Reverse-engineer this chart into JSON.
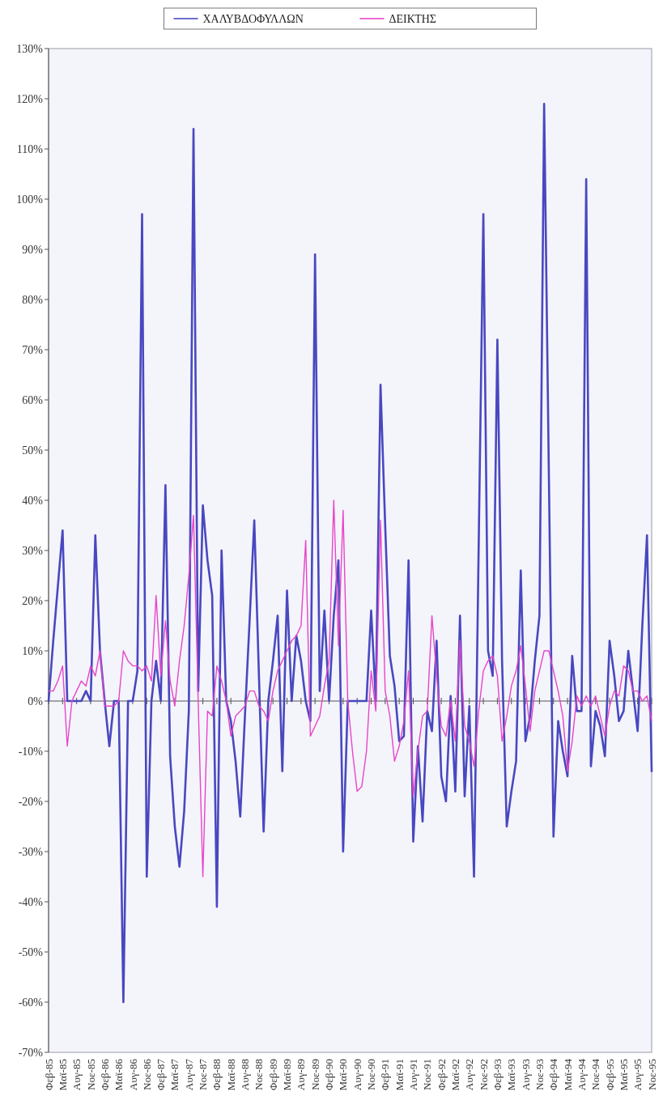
{
  "chart_data": {
    "type": "line",
    "categories": [
      "Φεβ-85",
      null,
      null,
      "Μαϊ-85",
      null,
      null,
      "Αυγ-85",
      null,
      null,
      "Νοε-85",
      null,
      null,
      "Φεβ-86",
      null,
      null,
      "Μαϊ-86",
      null,
      null,
      "Αυγ-86",
      null,
      null,
      "Νοε-86",
      null,
      null,
      "Φεβ-87",
      null,
      null,
      "Μαϊ-87",
      null,
      null,
      "Αυγ-87",
      null,
      null,
      "Νοε-87",
      null,
      null,
      "Φεβ-88",
      null,
      null,
      "Μαϊ-88",
      null,
      null,
      "Αυγ-88",
      null,
      null,
      "Νοε-88",
      null,
      null,
      "Φεβ-89",
      null,
      null,
      "Μαϊ-89",
      null,
      null,
      "Αυγ-89",
      null,
      null,
      "Νοε-89",
      null,
      null,
      "Φεβ-90",
      null,
      null,
      "Μαϊ-90",
      null,
      null,
      "Αυγ-90",
      null,
      null,
      "Νοε-90",
      null,
      null,
      "Φεβ-91",
      null,
      null,
      "Μαϊ-91",
      null,
      null,
      "Αυγ-91",
      null,
      null,
      "Νοε-91",
      null,
      null,
      "Φεβ-92",
      null,
      null,
      "Μαϊ-92",
      null,
      null,
      "Αυγ-92",
      null,
      null,
      "Νοε-92",
      null,
      null,
      "Φεβ-93",
      null,
      null,
      "Μαϊ-93",
      null,
      null,
      "Αυγ-93",
      null,
      null,
      "Νοε-93",
      null,
      null,
      "Φεβ-94",
      null,
      null,
      "Μαϊ-94",
      null,
      null,
      "Αυγ-94",
      null,
      null,
      "Νοε-94",
      null,
      null,
      "Φεβ-95",
      null,
      null,
      "Μαϊ-95",
      null,
      null,
      "Αυγ-95",
      null,
      null,
      "Νοε-95"
    ],
    "series": [
      {
        "name": "ΧΑΛΥΒΔΟΦΥΛΛΩΝ",
        "color": "#4848c0",
        "values": [
          0,
          12,
          23,
          34,
          0,
          0,
          0,
          0,
          2,
          0,
          33,
          10,
          0,
          -9,
          0,
          0,
          -60,
          0,
          0,
          6,
          97,
          -35,
          0,
          8,
          0,
          43,
          -11,
          -25,
          -33,
          -22,
          -2,
          114,
          2,
          39,
          28,
          21,
          -41,
          30,
          0,
          -4,
          -12,
          -23,
          -3,
          16,
          36,
          5,
          -26,
          0,
          8,
          17,
          -14,
          22,
          0,
          13,
          8,
          0,
          -4,
          89,
          2,
          18,
          0,
          17,
          28,
          -30,
          0,
          0,
          0,
          0,
          0,
          18,
          0,
          63,
          35,
          9,
          3,
          -8,
          -7,
          28,
          -28,
          -9,
          -24,
          -2,
          -6,
          12,
          -15,
          -20,
          1,
          -18,
          17,
          -19,
          -1,
          -35,
          31,
          97,
          10,
          5,
          72,
          8,
          -25,
          -18,
          -12,
          26,
          -8,
          -3,
          8,
          17,
          119,
          46,
          -27,
          -4,
          -10,
          -15,
          9,
          -2,
          -2,
          104,
          -13,
          -2,
          -5,
          -11,
          12,
          5,
          -4,
          -2,
          10,
          2,
          -6,
          15,
          33,
          -14
        ]
      },
      {
        "name": "ΔΕΙΚΤΗΣ",
        "color": "#e845c8",
        "values": [
          2,
          2,
          4,
          7,
          -9,
          0,
          2,
          4,
          3,
          7,
          5,
          10,
          -1,
          -1,
          -1,
          0,
          10,
          8,
          7,
          7,
          6,
          7,
          4,
          21,
          5,
          16,
          4,
          -1,
          8,
          15,
          25,
          37,
          0,
          -35,
          -2,
          -3,
          7,
          4,
          0,
          -7,
          -3,
          -2,
          -1,
          2,
          2,
          -1,
          -2,
          -4,
          2,
          6,
          8,
          10,
          12,
          13,
          15,
          32,
          -7,
          -5,
          -3,
          3,
          8,
          40,
          11,
          38,
          0,
          -10,
          -18,
          -17,
          -10,
          6,
          -2,
          36,
          2,
          -3,
          -12,
          -9,
          -4,
          6,
          -19,
          -10,
          -3,
          -2,
          17,
          5,
          -5,
          -7,
          0,
          -8,
          12,
          -5,
          -8,
          -13,
          -2,
          6,
          8,
          9,
          5,
          -8,
          -3,
          3,
          6,
          11,
          3,
          -6,
          2,
          6,
          10,
          10,
          6,
          2,
          -3,
          -14,
          -8,
          1,
          -1,
          1,
          -1,
          1,
          -3,
          -7,
          -1,
          2,
          1,
          7,
          6,
          2,
          2,
          0,
          1,
          -4
        ]
      }
    ],
    "ylim": [
      -70,
      130
    ],
    "yticks": [
      {
        "value": 130,
        "label": "130%"
      },
      {
        "value": 120,
        "label": "120%"
      },
      {
        "value": 110,
        "label": "110%"
      },
      {
        "value": 100,
        "label": "100%"
      },
      {
        "value": 90,
        "label": "90%"
      },
      {
        "value": 80,
        "label": "80%"
      },
      {
        "value": 70,
        "label": "70%"
      },
      {
        "value": 60,
        "label": "60%"
      },
      {
        "value": 50,
        "label": "50%"
      },
      {
        "value": 40,
        "label": "40%"
      },
      {
        "value": 30,
        "label": "30%"
      },
      {
        "value": 20,
        "label": "20%"
      },
      {
        "value": 10,
        "label": "10%"
      },
      {
        "value": 0,
        "label": "0%"
      },
      {
        "value": -10,
        "label": "-10%"
      },
      {
        "value": -20,
        "label": "-20%"
      },
      {
        "value": -30,
        "label": "-30%"
      },
      {
        "value": -40,
        "label": "-40%"
      },
      {
        "value": -50,
        "label": "-50%"
      },
      {
        "value": -60,
        "label": "-60%"
      },
      {
        "value": -70,
        "label": "-70%"
      }
    ],
    "legend": "top"
  }
}
